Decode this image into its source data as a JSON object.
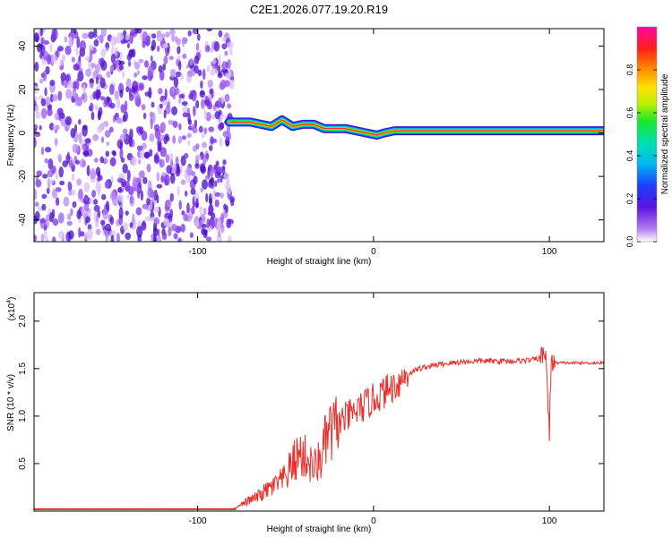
{
  "figure_title": "C2E1.2026.077.19.20.R19",
  "colors": {
    "snr_line": "#e8302c",
    "axis": "#000000",
    "scatter_purple": "#6a1fd8",
    "scatter_light": "#c9a6f2"
  },
  "chart_data": [
    {
      "type": "heatmap",
      "title": "C2E1.2026.077.19.20.R19",
      "xlabel": "Height of straight line (km)",
      "ylabel": "Frequency (Hz)",
      "xlim": [
        -193,
        131
      ],
      "ylim": [
        -50,
        48
      ],
      "xticks": [
        -100,
        0,
        100
      ],
      "xtick_labels": [
        "-100",
        "0",
        "100"
      ],
      "yticks": [
        -40,
        -20,
        0,
        20,
        40
      ],
      "ytick_labels": [
        "-40",
        "-20",
        "0",
        "20",
        "40"
      ],
      "colorbar": {
        "label": "Normalized spectral amplitude",
        "range": [
          0,
          1
        ],
        "ticks": [
          0,
          0.2,
          0.4,
          0.6,
          0.8
        ],
        "tick_labels": [
          "0.0",
          "0.2",
          "0.4",
          "0.6",
          "0.8"
        ]
      },
      "ridge": {
        "x": [
          -82,
          -76,
          -70,
          -64,
          -58,
          -52,
          -46,
          -40,
          -34,
          -28,
          -22,
          -16,
          -10,
          -4,
          2,
          6,
          12,
          20,
          40,
          60,
          80,
          100,
          131
        ],
        "y": [
          5,
          5,
          5,
          4,
          3,
          6,
          3,
          4,
          4,
          2,
          2,
          2,
          1,
          0,
          -1,
          0,
          1,
          1,
          1,
          1,
          1,
          1,
          1
        ]
      },
      "noise_region": {
        "x_range": [
          -193,
          -80
        ],
        "y_range": [
          -50,
          48
        ]
      }
    },
    {
      "type": "line",
      "xlabel": "Height of straight line (km)",
      "ylabel": "SNR (10 * v/v)",
      "scale_note": "(x10",
      "scale_exponent": "4",
      "xlim": [
        -193,
        131
      ],
      "ylim": [
        0,
        2.3
      ],
      "xticks": [
        -100,
        0,
        100
      ],
      "xtick_labels": [
        "-100",
        "0",
        "100"
      ],
      "yticks": [
        0.5,
        1.0,
        1.5,
        2.0
      ],
      "ytick_labels": [
        "0.5",
        "1.0",
        "1.5",
        "2.0"
      ],
      "series": [
        {
          "x": [
            -193,
            -150,
            -100,
            -80,
            -72,
            -66,
            -62,
            -58,
            -55,
            -50,
            -46,
            -42,
            -38,
            -34,
            -30,
            -26,
            -22,
            -18,
            -14,
            -10,
            -6,
            -2,
            2,
            6,
            10,
            14,
            18,
            22,
            26,
            30,
            40,
            50,
            60,
            70,
            80,
            90,
            96,
            98,
            99,
            100,
            101,
            102,
            104,
            110,
            120,
            131
          ],
          "y": [
            0.02,
            0.02,
            0.02,
            0.02,
            0.1,
            0.15,
            0.2,
            0.25,
            0.28,
            0.35,
            0.5,
            0.6,
            0.55,
            0.45,
            0.55,
            0.8,
            0.85,
            0.95,
            1.0,
            1.05,
            1.1,
            1.15,
            1.2,
            1.25,
            1.3,
            1.35,
            1.42,
            1.47,
            1.5,
            1.52,
            1.55,
            1.57,
            1.58,
            1.58,
            1.58,
            1.59,
            1.62,
            1.7,
            1.2,
            0.8,
            1.6,
            1.58,
            1.56,
            1.56,
            1.56,
            1.56
          ]
        }
      ]
    }
  ]
}
